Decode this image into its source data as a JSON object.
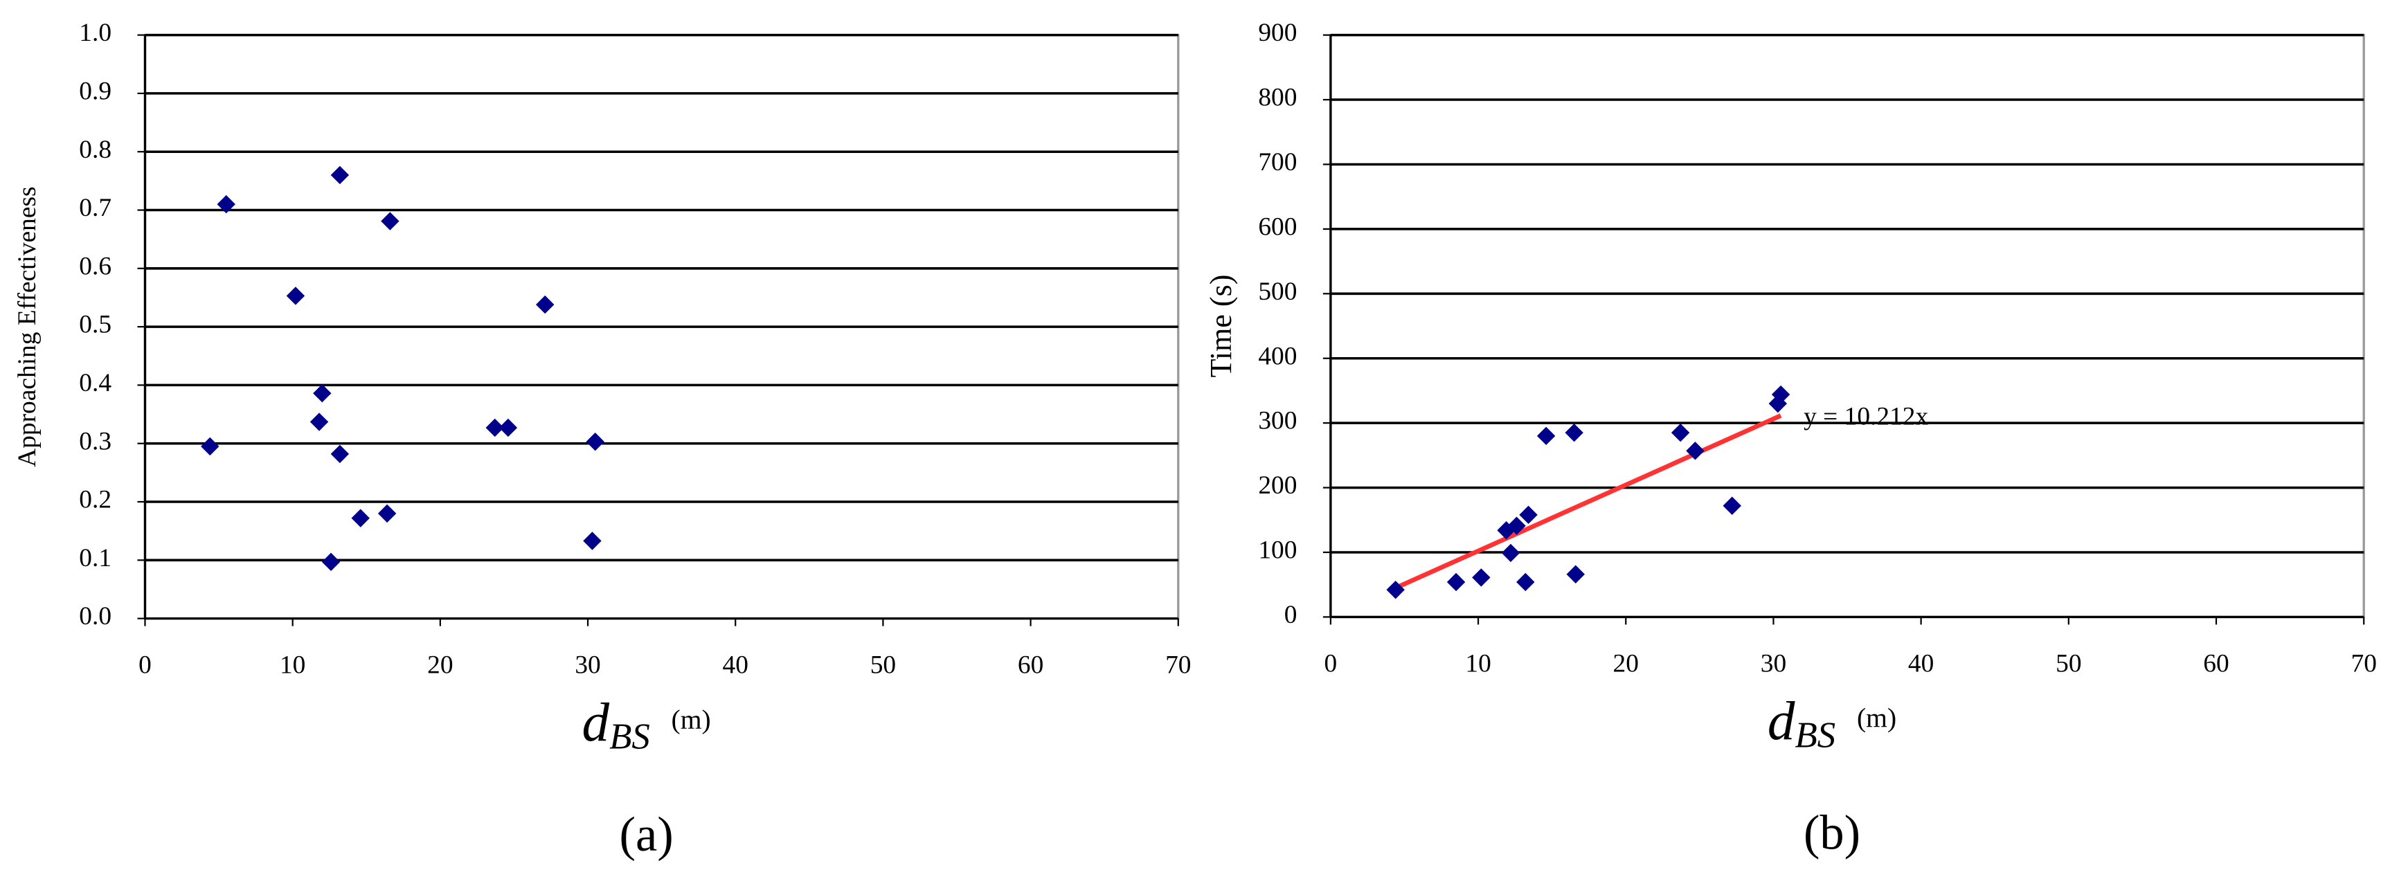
{
  "chart_data": [
    {
      "type": "scatter",
      "panel": "(a)",
      "ylabel": "Approaching Effectiveness",
      "xlabel": {
        "main": "d",
        "sub": "BS",
        "unit": "(m)"
      },
      "color": "#00008b",
      "grid": true,
      "x": [
        4.4,
        5.5,
        10.2,
        12.0,
        11.8,
        13.2,
        12.6,
        13.2,
        14.6,
        16.4,
        16.6,
        23.7,
        24.6,
        27.1,
        30.5,
        30.3
      ],
      "values": [
        0.295,
        0.71,
        0.553,
        0.386,
        0.337,
        0.282,
        0.097,
        0.76,
        0.172,
        0.18,
        0.681,
        0.327,
        0.327,
        0.538,
        0.303,
        0.133
      ],
      "xlim": [
        0,
        70
      ],
      "xticks": [
        0,
        10,
        20,
        30,
        40,
        50,
        60,
        70
      ],
      "ylim": [
        0,
        1
      ],
      "yticks": [
        {
          "value": 0,
          "label": "0.0"
        },
        0.1,
        0.2,
        0.3,
        0.4,
        0.5,
        0.6,
        0.7,
        0.8,
        0.9,
        {
          "value": 1,
          "label": "1.0"
        }
      ]
    },
    {
      "type": "scatter",
      "panel": "(b)",
      "ylabel": "Time (s)",
      "xlabel": {
        "main": "d",
        "sub": "BS",
        "unit": "(m)"
      },
      "color": "#00008b",
      "grid": true,
      "x": [
        4.4,
        8.5,
        10.2,
        11.9,
        12.2,
        12.6,
        13.2,
        13.4,
        14.6,
        16.5,
        16.6,
        23.7,
        24.7,
        27.2,
        30.3,
        30.5
      ],
      "values": [
        42,
        54,
        61,
        134,
        99,
        141,
        54,
        158,
        280,
        285,
        66,
        285,
        257,
        172,
        330,
        344
      ],
      "xlim": [
        0,
        70
      ],
      "xticks": [
        0,
        10,
        20,
        30,
        40,
        50,
        60,
        70
      ],
      "ylim": [
        0,
        900
      ],
      "yticks": [
        0,
        100,
        200,
        300,
        400,
        500,
        600,
        700,
        800,
        900
      ],
      "trendline": {
        "slope": 10.212,
        "label": "y = 10.212x",
        "color": "#ff3333"
      }
    }
  ]
}
